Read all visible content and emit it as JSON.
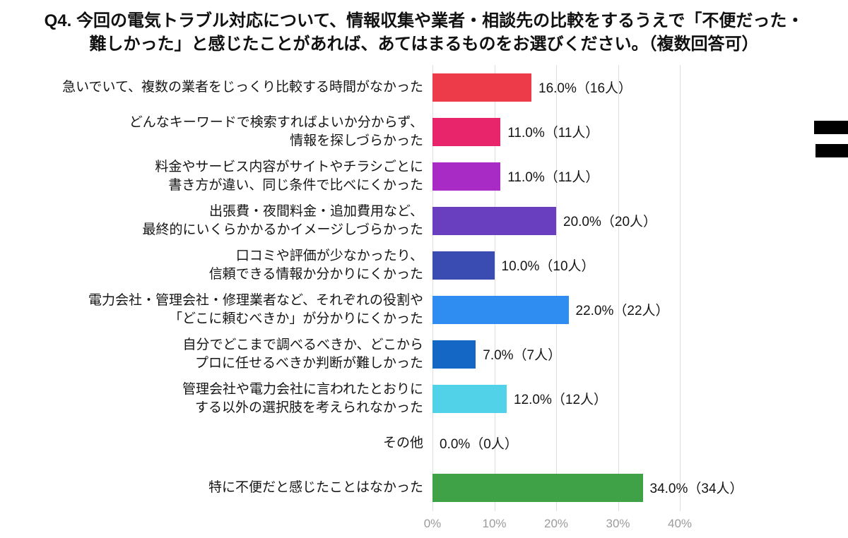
{
  "title": {
    "line1": "Q4. 今回の電気トラブル対応について、情報収集や業者・相談先の比較をするうえで「不便だった・",
    "line2": "難しかった」と感じたことがあれば、あてはまるものをお選びください。（複数回答可）"
  },
  "chart_data": {
    "type": "bar",
    "orientation": "horizontal",
    "title": "Q4. 今回の電気トラブル対応について、情報収集や業者・相談先の比較をするうえで「不便だった・難しかった」と感じたことがあれば、あてはまるものをお選びください。（複数回答可）",
    "x_axis": {
      "min": 0,
      "max": 40,
      "unit": "%",
      "ticks": [
        "0%",
        "10%",
        "20%",
        "30%",
        "40%"
      ],
      "grid": true
    },
    "legend": "none",
    "items": [
      {
        "label_lines": [
          "急いでいて、複数の業者をじっくり比較する時間がなかった"
        ],
        "percent": 16.0,
        "count": 16,
        "value_label": "16.0%（16人）",
        "color": "#ee3b49"
      },
      {
        "label_lines": [
          "どんなキーワードで検索すればよいか分からず、",
          "情報を探しづらかった"
        ],
        "percent": 11.0,
        "count": 11,
        "value_label": "11.0%（11人）",
        "color": "#e8256b"
      },
      {
        "label_lines": [
          "料金やサービス内容がサイトやチラシごとに",
          "書き方が違い、同じ条件で比べにくかった"
        ],
        "percent": 11.0,
        "count": 11,
        "value_label": "11.0%（11人）",
        "color": "#a72bc4"
      },
      {
        "label_lines": [
          "出張費・夜間料金・追加費用など、",
          "最終的にいくらかかるかイメージしづらかった"
        ],
        "percent": 20.0,
        "count": 20,
        "value_label": "20.0%（20人）",
        "color": "#6a3fbf"
      },
      {
        "label_lines": [
          "口コミや評価が少なかったり、",
          "信頼できる情報か分かりにくかった"
        ],
        "percent": 10.0,
        "count": 10,
        "value_label": "10.0%（10人）",
        "color": "#3a4cb2"
      },
      {
        "label_lines": [
          "電力会社・管理会社・修理業者など、それぞれの役割や",
          "「どこに頼むべきか」が分かりにくかった"
        ],
        "percent": 22.0,
        "count": 22,
        "value_label": "22.0%（22人）",
        "color": "#2f8df2"
      },
      {
        "label_lines": [
          "自分でどこまで調べるべきか、どこから",
          "プロに任せるべきか判断が難しかった"
        ],
        "percent": 7.0,
        "count": 7,
        "value_label": "7.0%（7人）",
        "color": "#1467c4"
      },
      {
        "label_lines": [
          "管理会社や電力会社に言われたとおりに",
          "する以外の選択肢を考えられなかった"
        ],
        "percent": 12.0,
        "count": 12,
        "value_label": "12.0%（12人）",
        "color": "#52d2e8"
      },
      {
        "label_lines": [
          "その他"
        ],
        "percent": 0.0,
        "count": 0,
        "value_label": "0.0%（0人）",
        "color": "transparent"
      },
      {
        "label_lines": [
          "特に不便だと感じたことはなかった"
        ],
        "percent": 34.0,
        "count": 34,
        "value_label": "34.0%（34人）",
        "color": "#3fa246"
      }
    ]
  },
  "artifacts": {
    "right_edge_marks_color": "#000000",
    "right_edge_marks_count": 2
  }
}
